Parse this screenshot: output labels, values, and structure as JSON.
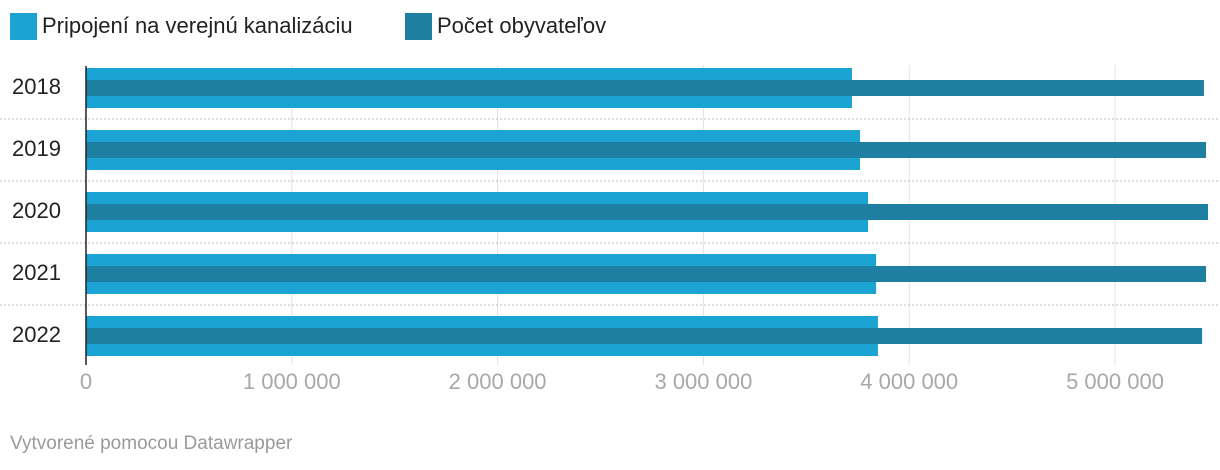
{
  "chart_data": {
    "type": "bar",
    "orientation": "horizontal",
    "categories": [
      "2018",
      "2019",
      "2020",
      "2021",
      "2022"
    ],
    "series": [
      {
        "name": "Pripojení na verejnú kanalizáciu",
        "color": "#1ba3d4",
        "values": [
          3722000,
          3761000,
          3800000,
          3839000,
          3848000
        ]
      },
      {
        "name": "Počet obyvateľov",
        "color": "#1f7fa3",
        "values": [
          5432000,
          5442000,
          5452000,
          5442000,
          5423000
        ]
      }
    ],
    "xlim": [
      0,
      5460000
    ],
    "xticks": [
      0,
      {
        "value": 1000000,
        "label": "1 000 000"
      },
      {
        "value": 2000000,
        "label": "2 000 000"
      },
      {
        "value": 3000000,
        "label": "3 000 000"
      },
      {
        "value": 4000000,
        "label": "4 000 000"
      },
      {
        "value": 5000000,
        "label": "5 000 000"
      }
    ],
    "grid": true,
    "footer": "Vytvorené pomocou Datawrapper"
  }
}
